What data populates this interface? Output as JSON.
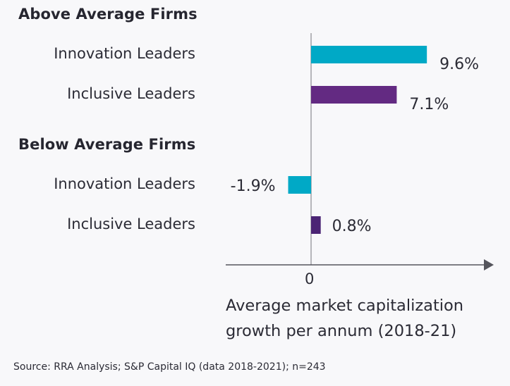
{
  "chart_data": {
    "type": "bar",
    "orientation": "horizontal",
    "groups": [
      {
        "label": "Above Average Firms",
        "items": [
          {
            "category": "Innovation Leaders",
            "value": 9.6,
            "label": "9.6%",
            "color": "#00a9c6"
          },
          {
            "category": "Inclusive Leaders",
            "value": 7.1,
            "label": "7.1%",
            "color": "#632a82"
          }
        ]
      },
      {
        "label": "Below Average Firms",
        "items": [
          {
            "category": "Innovation Leaders",
            "value": -1.9,
            "label": "-1.9%",
            "color": "#00a9c6"
          },
          {
            "category": "Inclusive Leaders",
            "value": 0.8,
            "label": "0.8%",
            "color": "#4b2474"
          }
        ]
      }
    ],
    "xlabel_lines": [
      "Average market capitalization",
      "growth per annum (2018-21)"
    ],
    "x_ticks": [
      "0"
    ],
    "xlim": [
      -7.1,
      14.5
    ],
    "unit": "%",
    "grid": false,
    "legend": "none",
    "source": "Source: RRA Analysis; S&P Capital IQ (data 2018-2021); n=243"
  },
  "colors": {
    "innovation": "#00a9c6",
    "inclusive": "#632a82",
    "axis": "#55555c"
  }
}
